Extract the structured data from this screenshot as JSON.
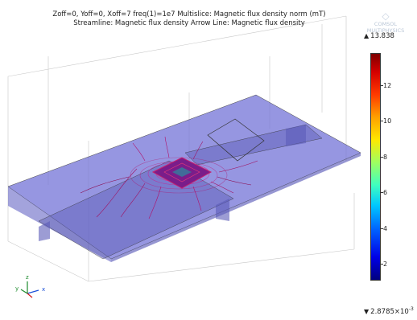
{
  "plot": {
    "title_line1": "Zoff=0, Yoff=0, Xoff=7 freq(1)=1e7   Multislice: Magnetic flux density norm (mT)",
    "title_line2": "Streamline: Magnetic flux density  Arrow Line: Magnetic flux density"
  },
  "logo": {
    "line1": "COMSOL",
    "line2": "MULTIPHYSICS"
  },
  "colorbar": {
    "max_label": "13.838",
    "min_label": "2.8785×10",
    "min_exponent": "-3",
    "ticks": [
      "12",
      "10",
      "8",
      "6",
      "4",
      "2"
    ],
    "colormap": "rainbow",
    "colors": [
      "#00007f",
      "#0000e6",
      "#00c8ff",
      "#9fff60",
      "#ffe800",
      "#ff3a00",
      "#7f0000"
    ]
  },
  "axes": {
    "x": "x",
    "y": "y",
    "z": "z"
  }
}
